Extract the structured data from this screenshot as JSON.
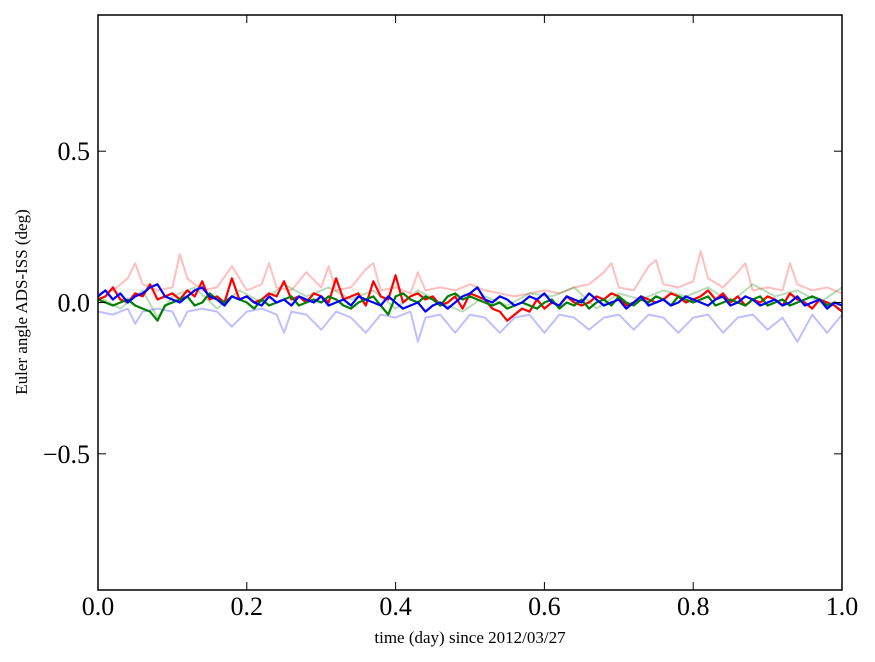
{
  "chart_data": {
    "type": "line",
    "title": "",
    "xlabel": "time (day) since 2012/03/27",
    "ylabel": "Euler angle ADS-ISS (deg)",
    "xlim": [
      0.0,
      1.0
    ],
    "ylim": [
      -0.95,
      0.95
    ],
    "grid": false,
    "legend": "none",
    "x_ticks": [
      {
        "value": 0.0,
        "label": "0.0"
      },
      {
        "value": 0.2,
        "label": "0.2"
      },
      {
        "value": 0.4,
        "label": "0.4"
      },
      {
        "value": 0.6,
        "label": "0.6"
      },
      {
        "value": 0.8,
        "label": "0.8"
      },
      {
        "value": 1.0,
        "label": "1.0"
      }
    ],
    "y_ticks": [
      {
        "value": 0.5,
        "label": "0.5"
      },
      {
        "value": 0.0,
        "label": "0.0"
      },
      {
        "value": -0.5,
        "label": "−0.5"
      }
    ],
    "series": [
      {
        "color": "#ff0000",
        "opacity": 0.25,
        "x": [
          0.0,
          0.02,
          0.04,
          0.05,
          0.06,
          0.08,
          0.1,
          0.11,
          0.12,
          0.14,
          0.16,
          0.18,
          0.2,
          0.22,
          0.23,
          0.24,
          0.26,
          0.28,
          0.3,
          0.31,
          0.32,
          0.34,
          0.36,
          0.37,
          0.38,
          0.4,
          0.42,
          0.43,
          0.44,
          0.46,
          0.48,
          0.5,
          0.52,
          0.54,
          0.56,
          0.58,
          0.6,
          0.62,
          0.64,
          0.66,
          0.68,
          0.69,
          0.7,
          0.72,
          0.74,
          0.75,
          0.76,
          0.78,
          0.8,
          0.81,
          0.82,
          0.84,
          0.86,
          0.87,
          0.88,
          0.9,
          0.92,
          0.93,
          0.94,
          0.96,
          0.98,
          1.0
        ],
        "y": [
          0.03,
          0.04,
          0.08,
          0.13,
          0.06,
          0.04,
          0.05,
          0.16,
          0.08,
          0.04,
          0.05,
          0.12,
          0.04,
          0.06,
          0.13,
          0.05,
          0.04,
          0.1,
          0.05,
          0.12,
          0.04,
          0.05,
          0.11,
          0.13,
          0.04,
          0.05,
          0.03,
          0.1,
          0.04,
          0.05,
          0.04,
          0.06,
          0.04,
          0.03,
          0.02,
          0.03,
          0.04,
          0.03,
          0.05,
          0.06,
          0.1,
          0.13,
          0.05,
          0.04,
          0.12,
          0.14,
          0.06,
          0.05,
          0.07,
          0.17,
          0.08,
          0.05,
          0.1,
          0.13,
          0.04,
          0.05,
          0.04,
          0.13,
          0.06,
          0.04,
          0.05,
          0.03
        ]
      },
      {
        "color": "#008000",
        "opacity": 0.28,
        "x": [
          0.0,
          0.03,
          0.06,
          0.08,
          0.1,
          0.13,
          0.16,
          0.19,
          0.22,
          0.25,
          0.28,
          0.31,
          0.34,
          0.37,
          0.4,
          0.43,
          0.46,
          0.49,
          0.52,
          0.55,
          0.58,
          0.61,
          0.64,
          0.67,
          0.7,
          0.73,
          0.76,
          0.79,
          0.82,
          0.85,
          0.88,
          0.91,
          0.94,
          0.97,
          1.0
        ],
        "y": [
          0.02,
          -0.02,
          0.04,
          -0.05,
          0.02,
          0.05,
          -0.02,
          0.04,
          0.0,
          0.06,
          0.02,
          0.05,
          0.01,
          0.04,
          -0.02,
          0.04,
          0.0,
          -0.03,
          0.02,
          -0.01,
          0.03,
          0.02,
          0.05,
          -0.02,
          0.03,
          0.01,
          0.04,
          0.02,
          0.05,
          0.0,
          0.06,
          0.02,
          0.04,
          0.0,
          0.05
        ]
      },
      {
        "color": "#0000ff",
        "opacity": 0.25,
        "x": [
          0.0,
          0.02,
          0.04,
          0.05,
          0.06,
          0.08,
          0.1,
          0.11,
          0.12,
          0.14,
          0.16,
          0.18,
          0.2,
          0.22,
          0.24,
          0.25,
          0.26,
          0.28,
          0.3,
          0.32,
          0.34,
          0.36,
          0.38,
          0.4,
          0.42,
          0.43,
          0.44,
          0.46,
          0.48,
          0.5,
          0.52,
          0.54,
          0.56,
          0.58,
          0.6,
          0.62,
          0.64,
          0.66,
          0.68,
          0.7,
          0.72,
          0.74,
          0.76,
          0.78,
          0.8,
          0.82,
          0.84,
          0.86,
          0.88,
          0.9,
          0.92,
          0.94,
          0.96,
          0.98,
          1.0
        ],
        "y": [
          -0.03,
          -0.04,
          -0.02,
          -0.07,
          -0.03,
          -0.02,
          -0.03,
          -0.08,
          -0.03,
          -0.02,
          -0.03,
          -0.08,
          -0.03,
          -0.02,
          -0.04,
          -0.1,
          -0.03,
          -0.04,
          -0.09,
          -0.03,
          -0.05,
          -0.1,
          -0.04,
          -0.05,
          -0.03,
          -0.13,
          -0.05,
          -0.04,
          -0.1,
          -0.04,
          -0.05,
          -0.1,
          -0.05,
          -0.04,
          -0.1,
          -0.04,
          -0.05,
          -0.09,
          -0.05,
          -0.04,
          -0.09,
          -0.04,
          -0.05,
          -0.1,
          -0.05,
          -0.04,
          -0.1,
          -0.05,
          -0.04,
          -0.09,
          -0.05,
          -0.13,
          -0.04,
          -0.1,
          -0.04
        ]
      },
      {
        "color": "#ff0000",
        "opacity": 1,
        "x": [
          0.0,
          0.01,
          0.02,
          0.03,
          0.04,
          0.05,
          0.06,
          0.07,
          0.08,
          0.09,
          0.1,
          0.11,
          0.12,
          0.13,
          0.14,
          0.15,
          0.16,
          0.17,
          0.18,
          0.19,
          0.2,
          0.21,
          0.22,
          0.23,
          0.24,
          0.25,
          0.26,
          0.27,
          0.28,
          0.29,
          0.3,
          0.31,
          0.32,
          0.33,
          0.34,
          0.35,
          0.36,
          0.37,
          0.38,
          0.39,
          0.4,
          0.41,
          0.42,
          0.43,
          0.44,
          0.45,
          0.46,
          0.47,
          0.48,
          0.49,
          0.5,
          0.51,
          0.52,
          0.53,
          0.54,
          0.55,
          0.56,
          0.57,
          0.58,
          0.59,
          0.6,
          0.61,
          0.62,
          0.63,
          0.64,
          0.65,
          0.66,
          0.67,
          0.68,
          0.69,
          0.7,
          0.71,
          0.72,
          0.73,
          0.74,
          0.75,
          0.76,
          0.77,
          0.78,
          0.79,
          0.8,
          0.81,
          0.82,
          0.83,
          0.84,
          0.85,
          0.86,
          0.87,
          0.88,
          0.89,
          0.9,
          0.91,
          0.92,
          0.93,
          0.94,
          0.95,
          0.96,
          0.97,
          0.98,
          0.99,
          1.0
        ],
        "y": [
          0.01,
          0.02,
          0.05,
          0.01,
          0.0,
          0.03,
          0.02,
          0.06,
          0.01,
          0.02,
          0.03,
          0.01,
          0.04,
          0.02,
          0.07,
          0.01,
          0.02,
          0.0,
          0.08,
          0.01,
          0.02,
          0.0,
          0.01,
          0.03,
          0.02,
          0.07,
          0.01,
          0.02,
          0.0,
          0.03,
          0.02,
          0.0,
          0.08,
          0.01,
          0.02,
          0.03,
          -0.01,
          0.07,
          0.02,
          0.01,
          0.09,
          0.0,
          0.02,
          0.03,
          0.01,
          0.02,
          -0.01,
          0.0,
          0.02,
          -0.02,
          0.03,
          0.02,
          0.01,
          -0.02,
          -0.03,
          -0.06,
          -0.04,
          -0.02,
          -0.03,
          0.01,
          -0.02,
          0.0,
          -0.01,
          0.02,
          0.0,
          -0.01,
          0.0,
          0.02,
          0.01,
          0.03,
          0.02,
          -0.01,
          0.0,
          0.02,
          0.01,
          0.0,
          0.01,
          0.03,
          0.02,
          0.0,
          0.01,
          0.02,
          0.04,
          0.01,
          0.03,
          0.0,
          0.02,
          -0.01,
          0.01,
          0.0,
          0.02,
          0.01,
          -0.01,
          0.03,
          0.01,
          0.0,
          -0.02,
          0.01,
          0.0,
          -0.01,
          -0.03
        ]
      },
      {
        "color": "#008000",
        "opacity": 1,
        "x": [
          0.0,
          0.01,
          0.02,
          0.03,
          0.04,
          0.05,
          0.06,
          0.07,
          0.08,
          0.09,
          0.1,
          0.11,
          0.12,
          0.13,
          0.14,
          0.15,
          0.16,
          0.17,
          0.18,
          0.19,
          0.2,
          0.21,
          0.22,
          0.23,
          0.24,
          0.25,
          0.26,
          0.27,
          0.28,
          0.29,
          0.3,
          0.31,
          0.32,
          0.33,
          0.34,
          0.35,
          0.36,
          0.37,
          0.38,
          0.39,
          0.4,
          0.41,
          0.42,
          0.43,
          0.44,
          0.45,
          0.46,
          0.47,
          0.48,
          0.49,
          0.5,
          0.51,
          0.52,
          0.53,
          0.54,
          0.55,
          0.56,
          0.57,
          0.58,
          0.59,
          0.6,
          0.61,
          0.62,
          0.63,
          0.64,
          0.65,
          0.66,
          0.67,
          0.68,
          0.69,
          0.7,
          0.71,
          0.72,
          0.73,
          0.74,
          0.75,
          0.76,
          0.77,
          0.78,
          0.79,
          0.8,
          0.81,
          0.82,
          0.83,
          0.84,
          0.85,
          0.86,
          0.87,
          0.88,
          0.89,
          0.9,
          0.91,
          0.92,
          0.93,
          0.94,
          0.95,
          0.96,
          0.97,
          0.98,
          0.99,
          1.0
        ],
        "y": [
          0.01,
          0.0,
          -0.01,
          0.0,
          0.01,
          -0.01,
          -0.02,
          -0.03,
          -0.06,
          -0.01,
          0.0,
          0.01,
          0.02,
          -0.01,
          0.0,
          0.03,
          0.01,
          0.0,
          0.02,
          0.01,
          0.0,
          -0.02,
          0.01,
          -0.01,
          0.0,
          0.01,
          0.02,
          -0.01,
          0.0,
          0.01,
          0.0,
          0.02,
          0.01,
          -0.01,
          -0.02,
          0.0,
          0.01,
          0.02,
          -0.01,
          -0.04,
          0.02,
          0.03,
          0.01,
          0.0,
          0.02,
          0.01,
          -0.01,
          0.02,
          0.03,
          0.01,
          0.02,
          0.01,
          0.0,
          -0.01,
          0.0,
          -0.02,
          -0.01,
          0.0,
          -0.01,
          -0.02,
          0.0,
          0.01,
          -0.02,
          0.0,
          -0.01,
          0.01,
          -0.02,
          0.0,
          0.01,
          -0.01,
          0.02,
          0.0,
          -0.01,
          0.01,
          0.0,
          0.02,
          0.01,
          -0.01,
          0.02,
          0.01,
          0.0,
          0.01,
          0.02,
          -0.01,
          0.0,
          0.01,
          0.0,
          -0.01,
          0.01,
          0.02,
          -0.01,
          0.0,
          0.01,
          -0.01,
          0.0,
          0.01,
          0.02,
          0.01,
          -0.01,
          0.0,
          -0.01
        ]
      },
      {
        "color": "#0000ff",
        "opacity": 1,
        "x": [
          0.0,
          0.01,
          0.02,
          0.03,
          0.04,
          0.05,
          0.06,
          0.07,
          0.08,
          0.09,
          0.1,
          0.11,
          0.12,
          0.13,
          0.14,
          0.15,
          0.16,
          0.17,
          0.18,
          0.19,
          0.2,
          0.21,
          0.22,
          0.23,
          0.24,
          0.25,
          0.26,
          0.27,
          0.28,
          0.29,
          0.3,
          0.31,
          0.32,
          0.33,
          0.34,
          0.35,
          0.36,
          0.37,
          0.38,
          0.39,
          0.4,
          0.41,
          0.42,
          0.43,
          0.44,
          0.45,
          0.46,
          0.47,
          0.48,
          0.49,
          0.5,
          0.51,
          0.52,
          0.53,
          0.54,
          0.55,
          0.56,
          0.57,
          0.58,
          0.59,
          0.6,
          0.61,
          0.62,
          0.63,
          0.64,
          0.65,
          0.66,
          0.67,
          0.68,
          0.69,
          0.7,
          0.71,
          0.72,
          0.73,
          0.74,
          0.75,
          0.76,
          0.77,
          0.78,
          0.79,
          0.8,
          0.81,
          0.82,
          0.83,
          0.84,
          0.85,
          0.86,
          0.87,
          0.88,
          0.89,
          0.9,
          0.91,
          0.92,
          0.93,
          0.94,
          0.95,
          0.96,
          0.97,
          0.98,
          0.99,
          1.0
        ],
        "y": [
          0.02,
          0.04,
          0.01,
          0.03,
          0.0,
          0.02,
          0.03,
          0.05,
          0.06,
          0.02,
          0.01,
          0.0,
          0.02,
          0.04,
          0.05,
          0.02,
          0.01,
          -0.01,
          0.02,
          0.01,
          0.02,
          0.0,
          -0.01,
          0.02,
          0.0,
          0.01,
          -0.01,
          0.02,
          0.01,
          0.0,
          0.02,
          -0.01,
          0.0,
          0.01,
          -0.01,
          0.02,
          0.01,
          0.0,
          -0.01,
          0.02,
          0.0,
          -0.02,
          -0.01,
          0.0,
          -0.03,
          -0.01,
          0.0,
          -0.02,
          0.0,
          0.02,
          0.03,
          0.05,
          0.01,
          0.0,
          0.02,
          0.01,
          -0.01,
          0.0,
          0.02,
          0.01,
          0.03,
          0.0,
          -0.01,
          0.02,
          0.01,
          0.0,
          0.03,
          0.01,
          -0.01,
          0.0,
          0.01,
          -0.02,
          0.0,
          0.02,
          -0.01,
          0.0,
          0.01,
          -0.01,
          0.0,
          0.02,
          0.01,
          0.0,
          -0.01,
          0.01,
          0.02,
          -0.01,
          0.0,
          0.02,
          0.01,
          -0.01,
          0.0,
          0.01,
          -0.01,
          0.0,
          0.02,
          -0.01,
          0.0,
          0.01,
          -0.02,
          0.0,
          -0.01
        ]
      }
    ]
  }
}
